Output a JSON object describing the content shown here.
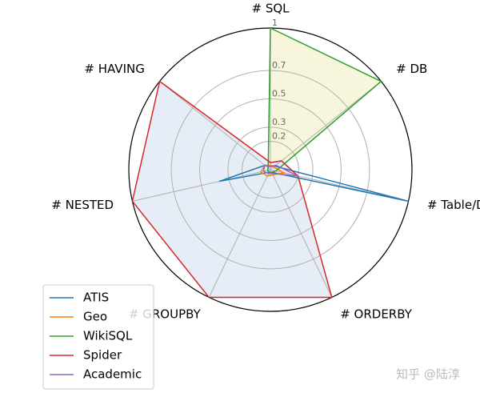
{
  "chart_data": {
    "type": "radar",
    "categories": [
      "# SQL",
      "# DB",
      "# Table/DB",
      "# ORDERBY",
      "# GROUPBY",
      "# NESTED",
      "# HAVING"
    ],
    "ylim": [
      0,
      1
    ],
    "yticks": [
      0.2,
      0.3,
      0.5,
      0.7,
      1
    ],
    "grid": true,
    "legend": "lower left",
    "series": [
      {
        "name": "ATIS",
        "color": "#1f77b4",
        "values": [
          0.03,
          0.04,
          1,
          0.02,
          0.02,
          0.37,
          0.05
        ]
      },
      {
        "name": "Geo",
        "color": "#ff7f0e",
        "values": [
          0.03,
          0.03,
          0.1,
          0.04,
          0.05,
          0.07,
          0.05
        ]
      },
      {
        "name": "WikiSQL",
        "color": "#2ca02c",
        "fill": "#f7f6dc",
        "values": [
          1,
          1,
          0.04,
          0.02,
          0.02,
          0.02,
          0.02
        ]
      },
      {
        "name": "Spider",
        "color": "#d62728",
        "fill": "#e6edf6",
        "values": [
          0.05,
          0.1,
          0.2,
          1,
          1,
          1,
          1
        ]
      },
      {
        "name": "Academic",
        "color": "#9467bd",
        "values": [
          0.02,
          0.05,
          0.2,
          0.03,
          0.03,
          0.05,
          0.05
        ]
      }
    ],
    "watermark": "知乎 @陆淳"
  }
}
